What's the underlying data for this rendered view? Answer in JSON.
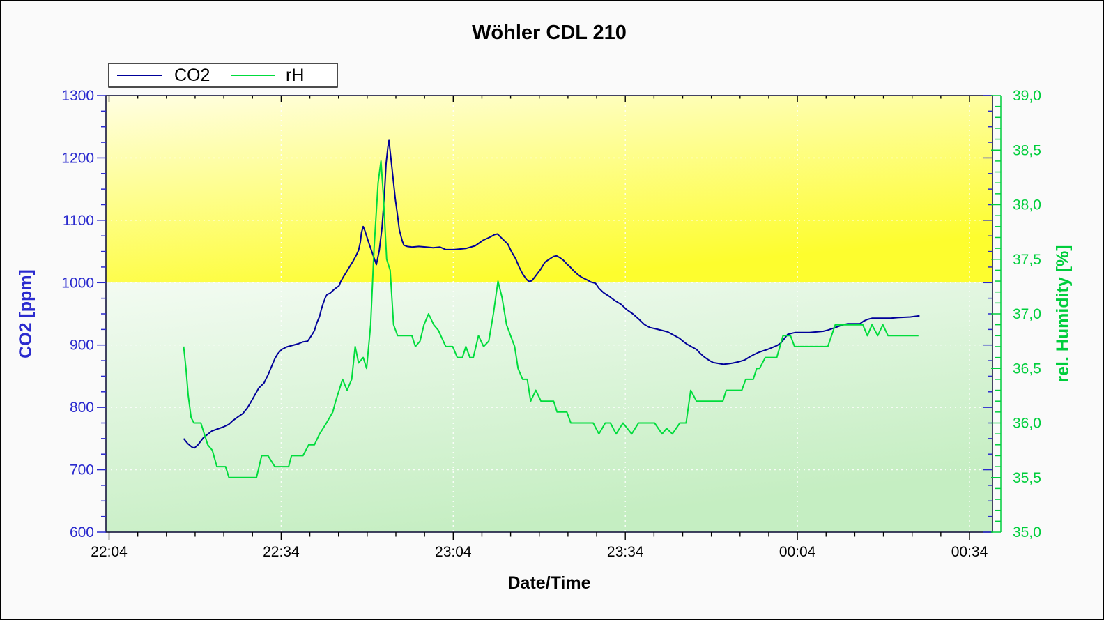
{
  "window": {
    "title": "Wöhler CDL 210"
  },
  "legend": {
    "items": [
      {
        "label": "CO2",
        "color": "#000099"
      },
      {
        "label": "rH",
        "color": "#00dc3c"
      }
    ]
  },
  "axes": {
    "x": {
      "label": "Date/Time",
      "major_ticks": [
        {
          "t": 0,
          "label": "22:04"
        },
        {
          "t": 30,
          "label": "22:34"
        },
        {
          "t": 60,
          "label": "23:04"
        },
        {
          "t": 90,
          "label": "23:34"
        },
        {
          "t": 120,
          "label": "00:04"
        },
        {
          "t": 150,
          "label": "00:34"
        }
      ],
      "minor_step_minutes": 5,
      "t_max": 154
    },
    "y_left": {
      "label": "CO2 [ppm]",
      "min": 600,
      "max": 1300,
      "major_step": 100,
      "minor_step": 25,
      "tick_labels": [
        "600",
        "700",
        "800",
        "900",
        "1000",
        "1100",
        "1200",
        "1300"
      ],
      "color": "#2a2ace"
    },
    "y_right": {
      "label": "rel. Humidity [%]",
      "min": 35.0,
      "max": 39.0,
      "major_step": 0.5,
      "minor_step": 0.1,
      "tick_labels": [
        "35,0",
        "35,5",
        "36,0",
        "36,5",
        "37,0",
        "37,5",
        "38,0",
        "38,5",
        "39,0"
      ],
      "color": "#00ce3c"
    }
  },
  "zones": {
    "threshold_ppm": 1000,
    "above": {
      "gradient": [
        "#fffee3",
        "#fdfd2e"
      ]
    },
    "below": {
      "gradient": [
        "#f3fbf2",
        "#c5eec2"
      ]
    }
  },
  "grid": {
    "color": "#ffffff",
    "dash": "2 5"
  },
  "chart_data": {
    "type": "line",
    "title": "Wöhler CDL 210",
    "xlabel": "Date/Time",
    "x_unit": "minutes after 22:04",
    "x_range_minutes": [
      0,
      154
    ],
    "x_tick_times": [
      "22:04",
      "22:34",
      "23:04",
      "23:34",
      "00:04",
      "00:34"
    ],
    "y_left_range": [
      600,
      1300
    ],
    "y_right_range": [
      35.0,
      39.0
    ],
    "legend_position": "top-left",
    "grid": true,
    "series": [
      {
        "name": "CO2",
        "axis": "left",
        "unit": "ppm",
        "color": "#000099",
        "points": [
          [
            13,
            750
          ],
          [
            13.7,
            742
          ],
          [
            14.5,
            736
          ],
          [
            14.9,
            735
          ],
          [
            15.5,
            740
          ],
          [
            16.4,
            751
          ],
          [
            17.2,
            757
          ],
          [
            17.9,
            762
          ],
          [
            19.1,
            766
          ],
          [
            20,
            769
          ],
          [
            20.9,
            773
          ],
          [
            21.6,
            779
          ],
          [
            22.5,
            785
          ],
          [
            23.3,
            790
          ],
          [
            24.1,
            799
          ],
          [
            24.5,
            805
          ],
          [
            25.3,
            818
          ],
          [
            26.1,
            831
          ],
          [
            27,
            839
          ],
          [
            27.7,
            852
          ],
          [
            28.3,
            865
          ],
          [
            28.9,
            878
          ],
          [
            29.4,
            886
          ],
          [
            30.1,
            893
          ],
          [
            31,
            897
          ],
          [
            31.8,
            899
          ],
          [
            33,
            902
          ],
          [
            33.8,
            905
          ],
          [
            34.6,
            906
          ],
          [
            35.2,
            914
          ],
          [
            35.8,
            923
          ],
          [
            36.2,
            935
          ],
          [
            36.7,
            946
          ],
          [
            37,
            957
          ],
          [
            37.3,
            966
          ],
          [
            37.7,
            976
          ],
          [
            38,
            981
          ],
          [
            38.5,
            983
          ],
          [
            39.1,
            988
          ],
          [
            39.5,
            991
          ],
          [
            39.8,
            993
          ],
          [
            40.1,
            995
          ],
          [
            40.4,
            1002
          ],
          [
            40.9,
            1010
          ],
          [
            41.3,
            1016
          ],
          [
            41.9,
            1025
          ],
          [
            42.5,
            1034
          ],
          [
            43.1,
            1044
          ],
          [
            43.5,
            1052
          ],
          [
            43.8,
            1065
          ],
          [
            44,
            1080
          ],
          [
            44.3,
            1090
          ],
          [
            44.6,
            1083
          ],
          [
            45.2,
            1066
          ],
          [
            45.8,
            1050
          ],
          [
            46.3,
            1037
          ],
          [
            46.6,
            1029
          ],
          [
            47.1,
            1051
          ],
          [
            47.6,
            1089
          ],
          [
            48,
            1141
          ],
          [
            48.3,
            1191
          ],
          [
            48.6,
            1217
          ],
          [
            48.8,
            1228
          ],
          [
            49.2,
            1194
          ],
          [
            49.6,
            1160
          ],
          [
            49.9,
            1134
          ],
          [
            50.3,
            1107
          ],
          [
            50.6,
            1085
          ],
          [
            51.1,
            1067
          ],
          [
            51.4,
            1060
          ],
          [
            52,
            1058
          ],
          [
            52.8,
            1057
          ],
          [
            54,
            1058
          ],
          [
            55.3,
            1057
          ],
          [
            56.5,
            1056
          ],
          [
            57.7,
            1057
          ],
          [
            58.7,
            1053
          ],
          [
            60.1,
            1053
          ],
          [
            61.3,
            1054
          ],
          [
            62.3,
            1055
          ],
          [
            63.8,
            1059
          ],
          [
            65.2,
            1068
          ],
          [
            66.4,
            1073
          ],
          [
            67.2,
            1077
          ],
          [
            67.7,
            1078
          ],
          [
            68.6,
            1070
          ],
          [
            69.5,
            1062
          ],
          [
            70.2,
            1049
          ],
          [
            70.9,
            1038
          ],
          [
            71.5,
            1025
          ],
          [
            72.1,
            1014
          ],
          [
            72.8,
            1005
          ],
          [
            73.2,
            1002
          ],
          [
            73.7,
            1003
          ],
          [
            74.3,
            1010
          ],
          [
            75.2,
            1021
          ],
          [
            76,
            1033
          ],
          [
            76.8,
            1038
          ],
          [
            77.5,
            1042
          ],
          [
            78,
            1043
          ],
          [
            78.6,
            1040
          ],
          [
            79.2,
            1036
          ],
          [
            79.8,
            1030
          ],
          [
            80.4,
            1025
          ],
          [
            81,
            1019
          ],
          [
            81.6,
            1014
          ],
          [
            82.3,
            1009
          ],
          [
            83.2,
            1005
          ],
          [
            84,
            1001
          ],
          [
            84.8,
            999
          ],
          [
            85.4,
            991
          ],
          [
            86.2,
            984
          ],
          [
            87.2,
            978
          ],
          [
            88.2,
            971
          ],
          [
            89.3,
            965
          ],
          [
            90.2,
            957
          ],
          [
            91.3,
            950
          ],
          [
            92.4,
            941
          ],
          [
            93.3,
            933
          ],
          [
            94.3,
            928
          ],
          [
            95.3,
            926
          ],
          [
            97.4,
            921
          ],
          [
            98.4,
            916
          ],
          [
            99.4,
            911
          ],
          [
            100.2,
            905
          ],
          [
            100.8,
            901
          ],
          [
            101.4,
            898
          ],
          [
            102.4,
            893
          ],
          [
            103,
            887
          ],
          [
            103.6,
            882
          ],
          [
            104.2,
            878
          ],
          [
            104.7,
            875
          ],
          [
            105.3,
            872
          ],
          [
            105.9,
            871
          ],
          [
            106.5,
            870
          ],
          [
            107.1,
            869
          ],
          [
            108,
            870
          ],
          [
            108.7,
            871
          ],
          [
            109.7,
            873
          ],
          [
            110.8,
            876
          ],
          [
            111.5,
            880
          ],
          [
            112.3,
            884
          ],
          [
            113.2,
            888
          ],
          [
            113.8,
            890
          ],
          [
            114.8,
            893
          ],
          [
            115.6,
            896
          ],
          [
            116.4,
            899
          ],
          [
            117.1,
            903
          ],
          [
            117.7,
            910
          ],
          [
            118.3,
            917
          ],
          [
            119.1,
            919
          ],
          [
            119.6,
            920
          ],
          [
            122.1,
            920
          ],
          [
            124.5,
            922
          ],
          [
            125.3,
            924
          ],
          [
            126.3,
            927
          ],
          [
            126.9,
            929
          ],
          [
            127.8,
            932
          ],
          [
            128.7,
            934
          ],
          [
            130.9,
            934
          ],
          [
            131.5,
            938
          ],
          [
            132.2,
            941
          ],
          [
            133,
            943
          ],
          [
            136.3,
            943
          ],
          [
            137.5,
            944
          ],
          [
            139.7,
            945
          ],
          [
            140.5,
            946
          ],
          [
            141.3,
            947
          ]
        ]
      },
      {
        "name": "rH",
        "axis": "right",
        "unit": "%",
        "color": "#00dc3c",
        "points": [
          [
            13,
            36.7
          ],
          [
            13.4,
            36.5
          ],
          [
            13.8,
            36.25
          ],
          [
            14.3,
            36.05
          ],
          [
            14.8,
            36.0
          ],
          [
            16,
            36.0
          ],
          [
            16.6,
            35.9
          ],
          [
            17.2,
            35.8
          ],
          [
            18,
            35.75
          ],
          [
            18.8,
            35.6
          ],
          [
            20.3,
            35.6
          ],
          [
            20.9,
            35.5
          ],
          [
            25.7,
            35.5
          ],
          [
            26.6,
            35.7
          ],
          [
            27.7,
            35.7
          ],
          [
            28.3,
            35.65
          ],
          [
            28.9,
            35.6
          ],
          [
            31.3,
            35.6
          ],
          [
            31.8,
            35.7
          ],
          [
            33.8,
            35.7
          ],
          [
            34.3,
            35.75
          ],
          [
            34.8,
            35.8
          ],
          [
            35.8,
            35.8
          ],
          [
            36.7,
            35.9
          ],
          [
            37.9,
            36.0
          ],
          [
            39,
            36.1
          ],
          [
            39.5,
            36.2
          ],
          [
            40.7,
            36.4
          ],
          [
            41.5,
            36.3
          ],
          [
            42.3,
            36.4
          ],
          [
            42.9,
            36.7
          ],
          [
            43.5,
            36.55
          ],
          [
            44.3,
            36.6
          ],
          [
            44.9,
            36.5
          ],
          [
            45.6,
            36.9
          ],
          [
            46.2,
            37.6
          ],
          [
            46.9,
            38.2
          ],
          [
            47.4,
            38.4
          ],
          [
            47.8,
            38.1
          ],
          [
            48.4,
            37.5
          ],
          [
            49,
            37.4
          ],
          [
            49.6,
            36.9
          ],
          [
            50.3,
            36.8
          ],
          [
            52.8,
            36.8
          ],
          [
            53.4,
            36.7
          ],
          [
            54.2,
            36.75
          ],
          [
            54.9,
            36.9
          ],
          [
            55.7,
            37.0
          ],
          [
            56.6,
            36.9
          ],
          [
            57.4,
            36.85
          ],
          [
            58.7,
            36.7
          ],
          [
            59.9,
            36.7
          ],
          [
            60.7,
            36.6
          ],
          [
            61.6,
            36.6
          ],
          [
            62.2,
            36.7
          ],
          [
            62.9,
            36.6
          ],
          [
            63.5,
            36.6
          ],
          [
            64.4,
            36.8
          ],
          [
            65.3,
            36.7
          ],
          [
            66.2,
            36.75
          ],
          [
            67,
            37.0
          ],
          [
            67.8,
            37.3
          ],
          [
            68.5,
            37.15
          ],
          [
            69.3,
            36.9
          ],
          [
            70,
            36.8
          ],
          [
            70.7,
            36.7
          ],
          [
            71.3,
            36.5
          ],
          [
            72.1,
            36.4
          ],
          [
            72.9,
            36.4
          ],
          [
            73.5,
            36.2
          ],
          [
            74.4,
            36.3
          ],
          [
            75.3,
            36.2
          ],
          [
            77.5,
            36.2
          ],
          [
            78.1,
            36.1
          ],
          [
            79.8,
            36.1
          ],
          [
            80.5,
            36.0
          ],
          [
            84.4,
            36.0
          ],
          [
            85.4,
            35.9
          ],
          [
            86.5,
            36.0
          ],
          [
            87.4,
            36.0
          ],
          [
            88.4,
            35.9
          ],
          [
            89.6,
            36.0
          ],
          [
            91.1,
            35.9
          ],
          [
            92.3,
            36.0
          ],
          [
            95.1,
            36.0
          ],
          [
            96.4,
            35.9
          ],
          [
            97.2,
            35.95
          ],
          [
            98.2,
            35.9
          ],
          [
            99.5,
            36.0
          ],
          [
            100.6,
            36.0
          ],
          [
            101.4,
            36.3
          ],
          [
            102.4,
            36.2
          ],
          [
            107,
            36.2
          ],
          [
            107.6,
            36.3
          ],
          [
            110.3,
            36.3
          ],
          [
            111,
            36.4
          ],
          [
            112.3,
            36.4
          ],
          [
            112.9,
            36.5
          ],
          [
            113.4,
            36.5
          ],
          [
            114.4,
            36.6
          ],
          [
            116.4,
            36.6
          ],
          [
            117.5,
            36.8
          ],
          [
            118.8,
            36.8
          ],
          [
            119.5,
            36.7
          ],
          [
            125.3,
            36.7
          ],
          [
            126.6,
            36.9
          ],
          [
            131.4,
            36.9
          ],
          [
            132.2,
            36.8
          ],
          [
            133,
            36.9
          ],
          [
            134,
            36.8
          ],
          [
            134.9,
            36.9
          ],
          [
            135.8,
            36.8
          ],
          [
            141.1,
            36.8
          ]
        ]
      }
    ]
  }
}
